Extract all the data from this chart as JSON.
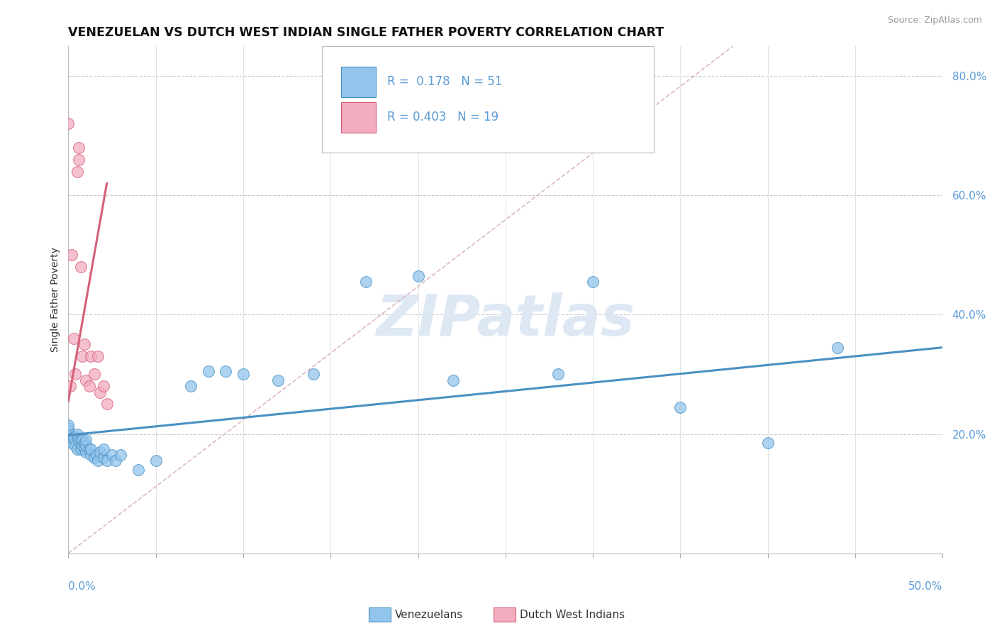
{
  "title": "VENEZUELAN VS DUTCH WEST INDIAN SINGLE FATHER POVERTY CORRELATION CHART",
  "source": "Source: ZipAtlas.com",
  "ylabel": "Single Father Poverty",
  "xlim": [
    0.0,
    0.5
  ],
  "ylim": [
    0.0,
    0.85
  ],
  "venezuelan_R": 0.178,
  "venezuelan_N": 51,
  "dutch_R": 0.403,
  "dutch_N": 19,
  "venezuelan_color": "#92C5EC",
  "dutch_color": "#F4ACBF",
  "venezuelan_line_color": "#4A90C4",
  "dutch_line_color": "#D4607A",
  "diag_color": "#D8B0C0",
  "watermark_color": "#DDE8F4",
  "venezuelan_x": [
    0.0,
    0.0,
    0.0,
    0.0,
    0.0,
    0.002,
    0.003,
    0.003,
    0.004,
    0.005,
    0.005,
    0.005,
    0.006,
    0.007,
    0.007,
    0.008,
    0.008,
    0.009,
    0.009,
    0.01,
    0.01,
    0.01,
    0.012,
    0.013,
    0.013,
    0.015,
    0.016,
    0.017,
    0.018,
    0.02,
    0.02,
    0.022,
    0.025,
    0.027,
    0.03,
    0.04,
    0.05,
    0.07,
    0.08,
    0.09,
    0.1,
    0.12,
    0.14,
    0.17,
    0.2,
    0.22,
    0.28,
    0.3,
    0.35,
    0.4,
    0.44
  ],
  "venezuelan_y": [
    0.195,
    0.2,
    0.205,
    0.21,
    0.215,
    0.185,
    0.19,
    0.195,
    0.18,
    0.175,
    0.195,
    0.2,
    0.19,
    0.175,
    0.19,
    0.18,
    0.19,
    0.175,
    0.185,
    0.17,
    0.18,
    0.19,
    0.175,
    0.165,
    0.175,
    0.16,
    0.165,
    0.155,
    0.17,
    0.16,
    0.175,
    0.155,
    0.165,
    0.155,
    0.165,
    0.14,
    0.155,
    0.28,
    0.305,
    0.305,
    0.3,
    0.29,
    0.3,
    0.455,
    0.465,
    0.29,
    0.3,
    0.455,
    0.245,
    0.185,
    0.345
  ],
  "dutch_x": [
    0.0,
    0.001,
    0.002,
    0.003,
    0.004,
    0.005,
    0.006,
    0.006,
    0.007,
    0.008,
    0.009,
    0.01,
    0.012,
    0.013,
    0.015,
    0.017,
    0.018,
    0.02,
    0.022
  ],
  "dutch_y": [
    0.72,
    0.28,
    0.5,
    0.36,
    0.3,
    0.64,
    0.66,
    0.68,
    0.48,
    0.33,
    0.35,
    0.29,
    0.28,
    0.33,
    0.3,
    0.33,
    0.27,
    0.28,
    0.25
  ],
  "ven_line_x0": 0.0,
  "ven_line_x1": 0.5,
  "ven_line_y0": 0.198,
  "ven_line_y1": 0.345,
  "dutch_line_x0": 0.0,
  "dutch_line_x1": 0.022,
  "dutch_line_y0": 0.255,
  "dutch_line_y1": 0.62
}
